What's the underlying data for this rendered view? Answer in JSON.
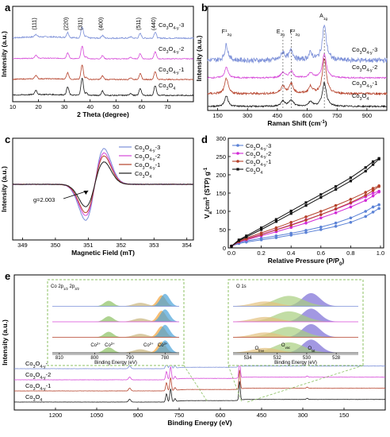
{
  "chart_data": [
    {
      "panel": "a",
      "type": "line",
      "xlabel": "2 Theta (degree)",
      "ylabel": "Intensity (a.u.)",
      "xlim": [
        10,
        80
      ],
      "x_ticks": [
        10,
        20,
        30,
        40,
        50,
        60,
        70
      ],
      "grid": false,
      "peak_labels": [
        {
          "label": "(111)",
          "x": 19.0
        },
        {
          "label": "(220)",
          "x": 31.3
        },
        {
          "label": "(311)",
          "x": 36.9
        },
        {
          "label": "(400)",
          "x": 44.8
        },
        {
          "label": "(511)",
          "x": 59.4
        },
        {
          "label": "(440)",
          "x": 65.2
        }
      ],
      "series": [
        {
          "name": "Co3O4-y-3",
          "color": "#7b8fd8"
        },
        {
          "name": "Co3O4-y-2",
          "color": "#d648d8"
        },
        {
          "name": "Co3O4-y-1",
          "color": "#b5412a"
        },
        {
          "name": "Co3O4",
          "color": "#1a1a1a"
        }
      ]
    },
    {
      "panel": "b",
      "type": "line",
      "xlabel": "Raman Shift (cm-1)",
      "ylabel": "Intensity (a.u.)",
      "xlim": [
        100,
        1000
      ],
      "x_ticks": [
        150,
        300,
        450,
        600,
        750,
        900
      ],
      "grid": false,
      "peak_labels": [
        {
          "label": "F12g",
          "x": 194
        },
        {
          "label": "Eg",
          "x": 478
        },
        {
          "label": "F22g",
          "x": 520
        },
        {
          "label": "A1g",
          "x": 686
        }
      ],
      "series": [
        {
          "name": "Co3O4-y-3",
          "color": "#7b8fd8"
        },
        {
          "name": "Co3O4-y-2",
          "color": "#d648d8"
        },
        {
          "name": "Co3O4-y-1",
          "color": "#b5412a"
        },
        {
          "name": "Co3O4",
          "color": "#1a1a1a"
        }
      ]
    },
    {
      "panel": "c",
      "type": "line",
      "xlabel": "Magnetic Field (mT)",
      "ylabel": "Intensity (a.u.)",
      "xlim": [
        348.7,
        354.2
      ],
      "x_ticks": [
        349,
        350,
        351,
        352,
        353,
        354
      ],
      "annotation": "g=2.003",
      "grid": false,
      "legend": "top-right",
      "series": [
        {
          "name": "Co3O4-y-3",
          "color": "#7b8fd8"
        },
        {
          "name": "Co3O4-y-2",
          "color": "#d648d8"
        },
        {
          "name": "Co3O4-y-1",
          "color": "#b5412a"
        },
        {
          "name": "Co3O4",
          "color": "#1a1a1a"
        }
      ]
    },
    {
      "panel": "d",
      "type": "line",
      "xlabel": "Relative Pressure (P/P0)",
      "ylabel": "Va/cm3 (STP) g-1",
      "xlim": [
        0.0,
        1.0
      ],
      "ylim": [
        0,
        300
      ],
      "x_ticks": [
        0.0,
        0.2,
        0.4,
        0.6,
        0.8,
        1.0
      ],
      "y_ticks": [
        0,
        50,
        100,
        150,
        200,
        250,
        300
      ],
      "grid": false,
      "legend": "top-left",
      "series": [
        {
          "name": "Co3O4-y-3",
          "color": "#5b82d6",
          "marker": "circle",
          "x": [
            0.0,
            0.05,
            0.1,
            0.2,
            0.3,
            0.4,
            0.5,
            0.6,
            0.7,
            0.8,
            0.9,
            0.95,
            0.99
          ],
          "adsorption": [
            5,
            12,
            16,
            22,
            28,
            35,
            42,
            50,
            59,
            70,
            86,
            98,
            108
          ],
          "desorption": [
            5,
            14,
            19,
            26,
            33,
            40,
            48,
            57,
            68,
            82,
            100,
            112,
            118
          ]
        },
        {
          "name": "Co3O4-y-2",
          "color": "#d22ad6",
          "marker": "circle",
          "x": [
            0.0,
            0.05,
            0.1,
            0.2,
            0.3,
            0.4,
            0.5,
            0.6,
            0.7,
            0.8,
            0.9,
            0.95,
            0.99
          ],
          "adsorption": [
            5,
            16,
            22,
            33,
            44,
            56,
            68,
            82,
            96,
            112,
            130,
            142,
            153
          ],
          "desorption": [
            5,
            18,
            25,
            37,
            50,
            63,
            77,
            91,
            106,
            122,
            140,
            150,
            155
          ]
        },
        {
          "name": "Co3O4-y-1",
          "color": "#b5412a",
          "marker": "circle",
          "x": [
            0.0,
            0.05,
            0.1,
            0.2,
            0.3,
            0.4,
            0.5,
            0.6,
            0.7,
            0.8,
            0.9,
            0.95,
            0.99
          ],
          "adsorption": [
            5,
            17,
            24,
            36,
            49,
            62,
            76,
            91,
            107,
            124,
            144,
            157,
            168
          ],
          "desorption": [
            5,
            19,
            27,
            41,
            55,
            70,
            85,
            100,
            116,
            133,
            152,
            163,
            170
          ]
        },
        {
          "name": "Co3O4",
          "color": "#111111",
          "marker": "square",
          "x": [
            0.0,
            0.05,
            0.1,
            0.2,
            0.3,
            0.4,
            0.5,
            0.6,
            0.7,
            0.8,
            0.9,
            0.95,
            0.99
          ],
          "adsorption": [
            5,
            20,
            30,
            50,
            72,
            94,
            116,
            138,
            160,
            183,
            210,
            228,
            243
          ],
          "desorption": [
            5,
            22,
            33,
            55,
            78,
            101,
            124,
            146,
            168,
            192,
            220,
            236,
            245
          ]
        }
      ]
    },
    {
      "panel": "e",
      "type": "line",
      "xlabel": "Binding Energy (eV)",
      "ylabel": "Intensity (a.u.)",
      "xlim": [
        1350,
        0
      ],
      "x_ticks": [
        1200,
        1050,
        900,
        750,
        600,
        450,
        300,
        150
      ],
      "grid": false,
      "series": [
        {
          "name": "Co3O4-y-3",
          "color": "#7b8fd8"
        },
        {
          "name": "Co3O4-y-2",
          "color": "#d648d8"
        },
        {
          "name": "Co3O4-y-1",
          "color": "#b5412a"
        },
        {
          "name": "Co3O4",
          "color": "#1a1a1a"
        }
      ],
      "insets": [
        {
          "title": "Co 2p1/2 2p3/2",
          "xlabel": "Binding Energy (eV)",
          "x_ticks": [
            810,
            800,
            790,
            780
          ],
          "annotations": [
            "Co2+",
            "Co3+",
            "Co2+",
            "Co3+"
          ]
        },
        {
          "title": "O 1s",
          "xlabel": "Binding Energy (eV)",
          "x_ticks": [
            534,
            532,
            530,
            528
          ],
          "annotations": [
            "Ofree",
            "Ovac",
            "Olat"
          ]
        }
      ]
    }
  ]
}
